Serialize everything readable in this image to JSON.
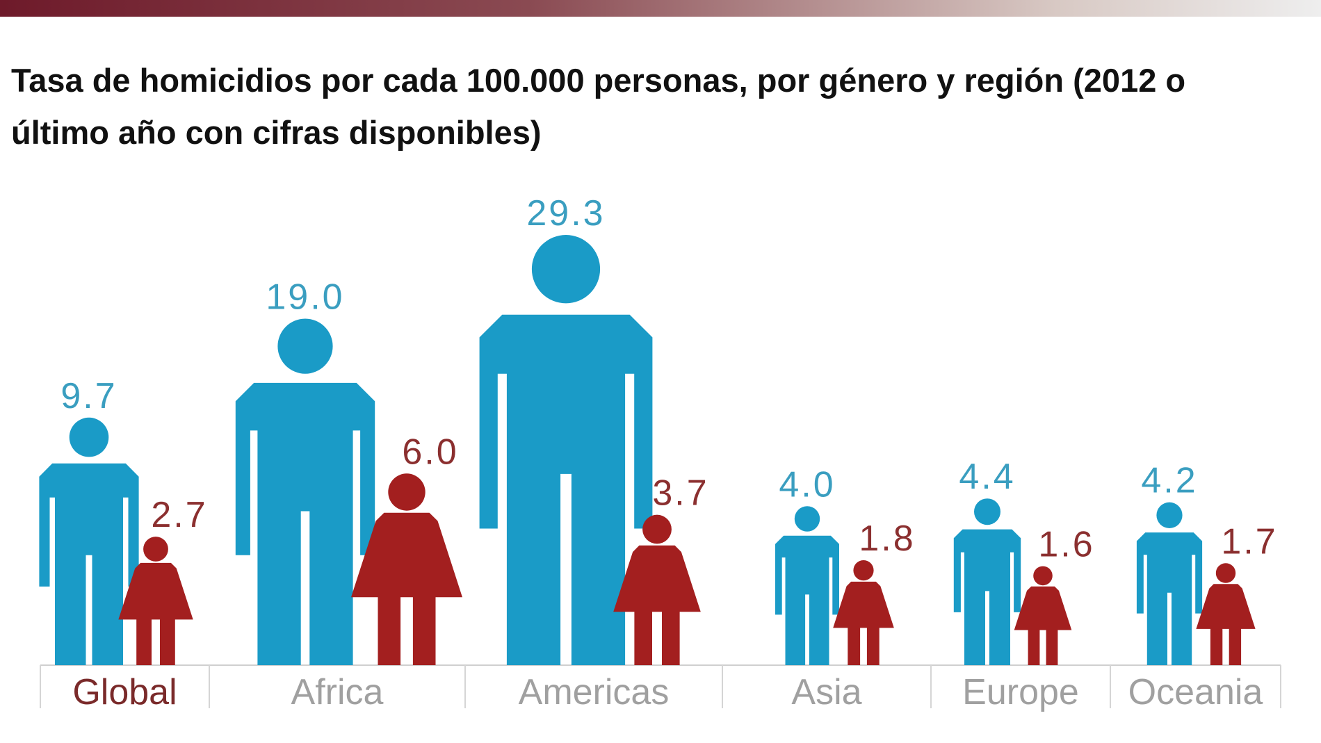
{
  "chart_data": {
    "type": "pictogram",
    "title": "Tasa de homicidios por cada 100.000 personas, por género y región (2012 o último año con cifras disponibles)",
    "categories": [
      "Global",
      "Africa",
      "Americas",
      "Asia",
      "Europe",
      "Oceania"
    ],
    "series": [
      {
        "color": "#1a9bc7",
        "values": [
          9.7,
          19.0,
          29.3,
          4.0,
          4.4,
          4.2
        ],
        "value_labels": [
          "9.7",
          "19.0",
          "29.3",
          "4.0",
          "4.4",
          "4.2"
        ]
      },
      {
        "color": "#a31f1f",
        "values": [
          2.7,
          6.0,
          3.7,
          1.8,
          1.6,
          1.7
        ],
        "value_labels": [
          "2.7",
          "6.0",
          "3.7",
          "1.8",
          "1.6",
          "1.7"
        ]
      }
    ]
  }
}
